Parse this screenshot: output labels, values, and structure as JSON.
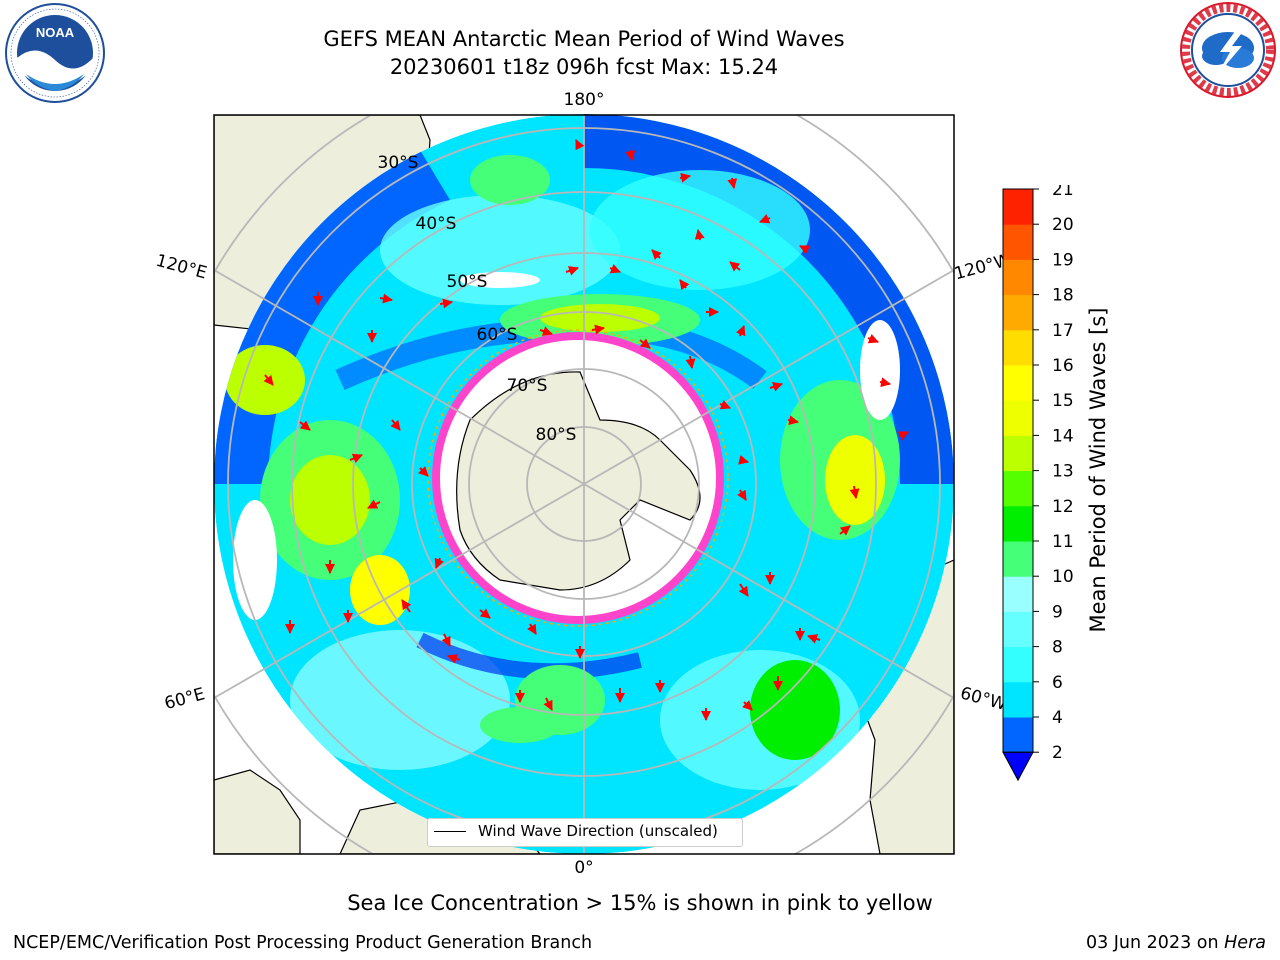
{
  "title": {
    "line1": "GEFS MEAN Antarctic Mean Period of Wind Waves",
    "line2": "20230601 t18z 096h fcst   Max: 15.24"
  },
  "map": {
    "projection": "south-polar-stereographic",
    "lon_labels": {
      "top": "180°",
      "bottom": "0°",
      "left_upper": "120°E",
      "left_lower": "60°E",
      "right_upper": "120°W",
      "right_lower": "60°W"
    },
    "lat_labels": [
      "30°S",
      "40°S",
      "50°S",
      "60°S",
      "70°S",
      "80°S"
    ],
    "legend": "Wind Wave Direction (unscaled)",
    "arrow_color": "#ff0000"
  },
  "colorbar": {
    "label": "Mean Period of Wind Waves [s]",
    "ticks": [
      "2",
      "4",
      "6",
      "8",
      "9",
      "10",
      "11",
      "12",
      "13",
      "14",
      "15",
      "16",
      "17",
      "18",
      "19",
      "20",
      "21"
    ],
    "colors": [
      "#0066ff",
      "#00e5ff",
      "#33ffff",
      "#66ffff",
      "#99ffff",
      "#44ff77",
      "#00ee00",
      "#55ff00",
      "#bbff00",
      "#eeff00",
      "#ffff00",
      "#ffdd00",
      "#ffaa00",
      "#ff8800",
      "#ff5500",
      "#ff2200",
      "#ff0000"
    ],
    "under_color": "#0000ff"
  },
  "logos": {
    "left": "NOAA",
    "right": "NATIONAL WEATHER SERVICE"
  },
  "note": "Sea Ice Concentration > 15% is shown in pink to yellow",
  "footer": {
    "credit": "NCEP/EMC/Verification Post Processing Product Generation Branch",
    "date_prefix": "03 Jun 2023 on ",
    "date_machine": "Hera"
  }
}
